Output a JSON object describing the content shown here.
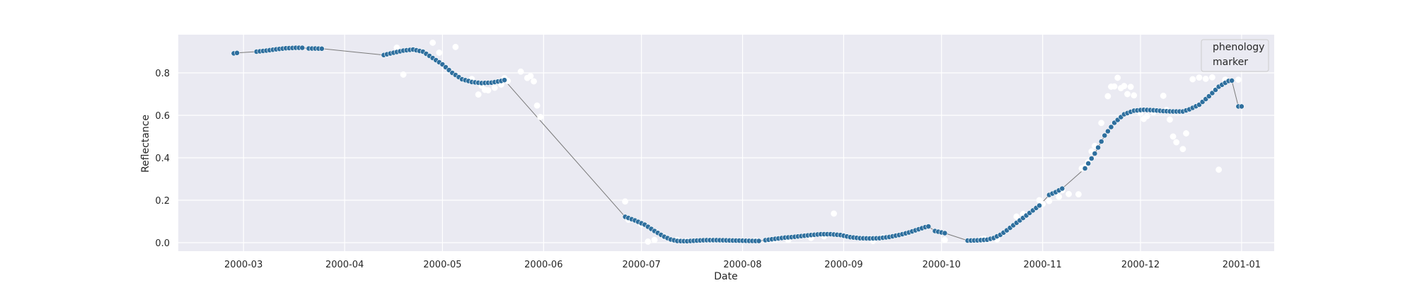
{
  "chart_data": {
    "type": "scatter",
    "title": "",
    "xlabel": "Date",
    "ylabel": "Reflectance",
    "x_axis_type": "date",
    "xlim": [
      "2000-02-10",
      "2001-01-11"
    ],
    "ylim": [
      -0.04,
      0.98
    ],
    "x_ticks": [
      "2000-03-01",
      "2000-04-01",
      "2000-05-01",
      "2000-06-01",
      "2000-07-01",
      "2000-08-01",
      "2000-09-01",
      "2000-10-01",
      "2000-11-01",
      "2000-12-01",
      "2001-01-01"
    ],
    "x_tick_labels": [
      "2000-03",
      "2000-04",
      "2000-05",
      "2000-06",
      "2000-07",
      "2000-08",
      "2000-09",
      "2000-10",
      "2000-11",
      "2000-12",
      "2001-01"
    ],
    "y_ticks": [
      0.0,
      0.2,
      0.4,
      0.6,
      0.8
    ],
    "y_tick_labels": [
      "0.0",
      "0.2",
      "0.4",
      "0.6",
      "0.8"
    ],
    "grid": true,
    "background": "#eaeaf2",
    "colors": {
      "fitted": "#2e6f9e",
      "raw": "#ffffff",
      "line": "#7a7a7a"
    },
    "legend": {
      "position": "top-right",
      "entries": [
        "phenology",
        "marker"
      ]
    },
    "series": [
      {
        "name": "phenology",
        "role": "fitted-markers",
        "segments": [
          {
            "start": "2000-02-27",
            "end": "2000-02-28",
            "points": [
              [
                0,
                0.892
              ],
              [
                1,
                0.894
              ]
            ]
          },
          {
            "start": "2000-03-05",
            "end": "2000-03-19",
            "points": [
              [
                0,
                0.9
              ],
              [
                3,
                0.905
              ],
              [
                6,
                0.911
              ],
              [
                9,
                0.916
              ],
              [
                12,
                0.918
              ],
              [
                14,
                0.918
              ]
            ]
          },
          {
            "start": "2000-03-21",
            "end": "2000-03-25",
            "points": [
              [
                0,
                0.915
              ],
              [
                4,
                0.914
              ]
            ]
          },
          {
            "start": "2000-04-13",
            "end": "2000-05-20",
            "points": [
              [
                0,
                0.884
              ],
              [
                3,
                0.895
              ],
              [
                6,
                0.905
              ],
              [
                9,
                0.91
              ],
              [
                12,
                0.9
              ],
              [
                15,
                0.87
              ],
              [
                18,
                0.84
              ],
              [
                21,
                0.8
              ],
              [
                24,
                0.77
              ],
              [
                27,
                0.757
              ],
              [
                30,
                0.752
              ],
              [
                33,
                0.754
              ],
              [
                36,
                0.762
              ],
              [
                38,
                0.77
              ],
              [
                40,
                0.756
              ],
              [
                43,
                0.724
              ],
              [
                46,
                0.694
              ],
              [
                48,
                0.677
              ]
            ]
          },
          {
            "start": "2000-06-26",
            "end": "2000-08-06",
            "points": [
              [
                0,
                0.122
              ],
              [
                3,
                0.105
              ],
              [
                6,
                0.085
              ],
              [
                9,
                0.055
              ],
              [
                12,
                0.028
              ],
              [
                14,
                0.015
              ],
              [
                16,
                0.008
              ],
              [
                19,
                0.007
              ],
              [
                22,
                0.01
              ],
              [
                25,
                0.012
              ],
              [
                28,
                0.012
              ],
              [
                31,
                0.011
              ],
              [
                34,
                0.01
              ],
              [
                37,
                0.009
              ],
              [
                40,
                0.008
              ],
              [
                41,
                0.008
              ]
            ]
          },
          {
            "start": "2000-08-08",
            "end": "2000-09-27",
            "points": [
              [
                0,
                0.012
              ],
              [
                3,
                0.018
              ],
              [
                6,
                0.024
              ],
              [
                8,
                0.026
              ],
              [
                11,
                0.031
              ],
              [
                14,
                0.036
              ],
              [
                17,
                0.04
              ],
              [
                20,
                0.04
              ],
              [
                23,
                0.036
              ],
              [
                26,
                0.026
              ],
              [
                29,
                0.021
              ],
              [
                32,
                0.02
              ],
              [
                35,
                0.021
              ],
              [
                38,
                0.027
              ],
              [
                41,
                0.036
              ],
              [
                44,
                0.048
              ],
              [
                47,
                0.063
              ],
              [
                49,
                0.073
              ],
              [
                51,
                0.08
              ],
              [
                50,
                0.086
              ]
            ]
          },
          {
            "start": "2000-09-29",
            "end": "2000-10-02",
            "points": [
              [
                0,
                0.055
              ],
              [
                3,
                0.045
              ]
            ]
          },
          {
            "start": "2000-10-09",
            "end": "2000-10-31",
            "points": [
              [
                0,
                0.01
              ],
              [
                3,
                0.011
              ],
              [
                6,
                0.014
              ],
              [
                8,
                0.022
              ],
              [
                10,
                0.037
              ],
              [
                12,
                0.058
              ],
              [
                14,
                0.082
              ],
              [
                16,
                0.105
              ],
              [
                18,
                0.128
              ],
              [
                20,
                0.152
              ],
              [
                22,
                0.175
              ]
            ]
          },
          {
            "start": "2000-11-03",
            "end": "2000-11-07",
            "points": [
              [
                0,
                0.225
              ],
              [
                2,
                0.238
              ],
              [
                4,
                0.255
              ]
            ]
          },
          {
            "start": "2000-11-14",
            "end": "2000-12-29",
            "points": [
              [
                0,
                0.35
              ],
              [
                3,
                0.42
              ],
              [
                6,
                0.505
              ],
              [
                9,
                0.565
              ],
              [
                12,
                0.605
              ],
              [
                15,
                0.622
              ],
              [
                18,
                0.626
              ],
              [
                21,
                0.624
              ],
              [
                24,
                0.62
              ],
              [
                27,
                0.618
              ],
              [
                30,
                0.618
              ],
              [
                32,
                0.628
              ],
              [
                35,
                0.65
              ],
              [
                38,
                0.69
              ],
              [
                41,
                0.735
              ],
              [
                44,
                0.762
              ],
              [
                47,
                0.767
              ],
              [
                50,
                0.757
              ],
              [
                53,
                0.735
              ],
              [
                56,
                0.702
              ],
              [
                58,
                0.68
              ]
            ]
          },
          {
            "start": "2000-12-31",
            "end": "2000-12-31",
            "points": [
              [
                0,
                0.642
              ]
            ]
          }
        ]
      },
      {
        "name": "marker",
        "role": "raw-observations",
        "points": [
          [
            "2000-04-17",
            0.919
          ],
          [
            "2000-04-19",
            0.792
          ],
          [
            "2000-04-28",
            0.942
          ],
          [
            "2000-04-30",
            0.895
          ],
          [
            "2000-05-05",
            0.922
          ],
          [
            "2000-05-10",
            0.771
          ],
          [
            "2000-05-12",
            0.698
          ],
          [
            "2000-05-13",
            0.74
          ],
          [
            "2000-05-14",
            0.72
          ],
          [
            "2000-05-15",
            0.718
          ],
          [
            "2000-05-17",
            0.73
          ],
          [
            "2000-05-19",
            0.745
          ],
          [
            "2000-05-20",
            0.775
          ],
          [
            "2000-05-21",
            0.762
          ],
          [
            "2000-05-25",
            0.806
          ],
          [
            "2000-05-27",
            0.776
          ],
          [
            "2000-05-28",
            0.785
          ],
          [
            "2000-05-29",
            0.76
          ],
          [
            "2000-05-30",
            0.646
          ],
          [
            "2000-05-31",
            0.592
          ],
          [
            "2000-06-26",
            0.194
          ],
          [
            "2000-06-27",
            0.108
          ],
          [
            "2000-07-01",
            0.086
          ],
          [
            "2000-07-03",
            0.005
          ],
          [
            "2000-07-05",
            0.013
          ],
          [
            "2000-07-08",
            0.028
          ],
          [
            "2000-07-12",
            0.013
          ],
          [
            "2000-07-15",
            0.008
          ],
          [
            "2000-07-22",
            0.012
          ],
          [
            "2000-08-05",
            0.01
          ],
          [
            "2000-08-11",
            0.015
          ],
          [
            "2000-08-15",
            0.012
          ],
          [
            "2000-08-22",
            0.022
          ],
          [
            "2000-08-26",
            0.03
          ],
          [
            "2000-08-29",
            0.137
          ],
          [
            "2000-09-10",
            0.008
          ],
          [
            "2000-09-13",
            0.025
          ],
          [
            "2000-10-02",
            0.013
          ],
          [
            "2000-10-13",
            0.014
          ],
          [
            "2000-10-14",
            0.019
          ],
          [
            "2000-10-18",
            0.016
          ],
          [
            "2000-10-24",
            0.123
          ],
          [
            "2000-10-26",
            0.135
          ],
          [
            "2000-10-31",
            0.2
          ],
          [
            "2000-11-01",
            0.182
          ],
          [
            "2000-11-03",
            0.196
          ],
          [
            "2000-11-06",
            0.216
          ],
          [
            "2000-11-07",
            0.247
          ],
          [
            "2000-11-09",
            0.229
          ],
          [
            "2000-11-12",
            0.228
          ],
          [
            "2000-11-13",
            0.35
          ],
          [
            "2000-11-14",
            0.358
          ],
          [
            "2000-11-15",
            0.38
          ],
          [
            "2000-11-16",
            0.43
          ],
          [
            "2000-11-17",
            0.456
          ],
          [
            "2000-11-19",
            0.564
          ],
          [
            "2000-11-21",
            0.69
          ],
          [
            "2000-11-22",
            0.735
          ],
          [
            "2000-11-23",
            0.736
          ],
          [
            "2000-11-24",
            0.777
          ],
          [
            "2000-11-25",
            0.728
          ],
          [
            "2000-11-26",
            0.738
          ],
          [
            "2000-11-27",
            0.7
          ],
          [
            "2000-11-28",
            0.734
          ],
          [
            "2000-11-29",
            0.694
          ],
          [
            "2000-12-01",
            0.61
          ],
          [
            "2000-12-02",
            0.583
          ],
          [
            "2000-12-03",
            0.596
          ],
          [
            "2000-12-05",
            0.615
          ],
          [
            "2000-12-08",
            0.692
          ],
          [
            "2000-12-09",
            0.625
          ],
          [
            "2000-12-10",
            0.58
          ],
          [
            "2000-12-11",
            0.5
          ],
          [
            "2000-12-12",
            0.473
          ],
          [
            "2000-12-14",
            0.441
          ],
          [
            "2000-12-15",
            0.515
          ],
          [
            "2000-12-17",
            0.77
          ],
          [
            "2000-12-19",
            0.778
          ],
          [
            "2000-12-21",
            0.772
          ],
          [
            "2000-12-23",
            0.779
          ],
          [
            "2000-12-24",
            0.721
          ],
          [
            "2000-12-25",
            0.344
          ],
          [
            "2000-12-27",
            0.768
          ],
          [
            "2000-12-31",
            0.768
          ]
        ]
      }
    ]
  }
}
